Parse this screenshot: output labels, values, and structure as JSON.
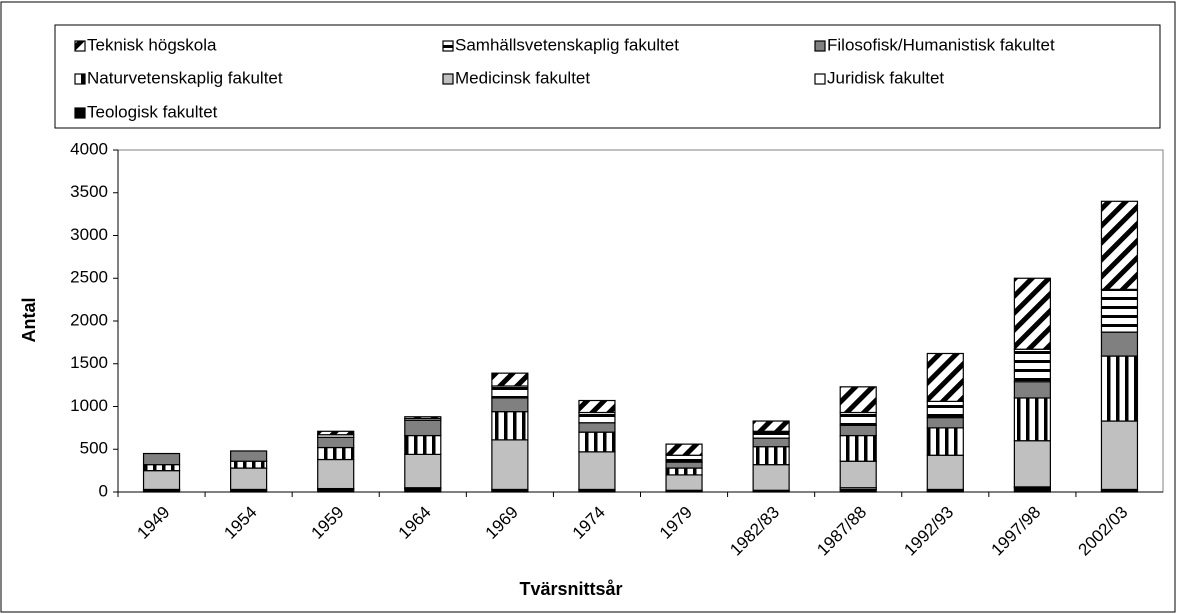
{
  "chart_data": {
    "type": "stacked_bar",
    "x_label": "Tvärsnittsår",
    "y_label": "Antal",
    "categories": [
      "1949",
      "1954",
      "1959",
      "1964",
      "1969",
      "1974",
      "1979",
      "1982/83",
      "1987/88",
      "1992/93",
      "1997/98",
      "2002/03"
    ],
    "ylim": [
      0,
      4000
    ],
    "yticks": [
      0,
      500,
      1000,
      1500,
      2000,
      2500,
      3000,
      3500,
      4000
    ],
    "series": [
      {
        "name": "Teologisk fakultet",
        "color": "#000000",
        "pattern": "solid",
        "values": [
          20,
          20,
          30,
          40,
          20,
          20,
          10,
          10,
          30,
          20,
          50,
          20
        ]
      },
      {
        "name": "Juridisk fakultet",
        "color": "#ffffff",
        "pattern": "solid",
        "values": [
          10,
          10,
          10,
          10,
          10,
          10,
          10,
          10,
          20,
          10,
          10,
          10
        ]
      },
      {
        "name": "Medicinsk fakultet",
        "color": "#c0c0c0",
        "pattern": "solid",
        "values": [
          220,
          250,
          340,
          390,
          580,
          440,
          180,
          300,
          310,
          400,
          540,
          800
        ]
      },
      {
        "name": "Naturvetenskaplig fakultet",
        "color": "#000000",
        "pattern": "vertical",
        "values": [
          70,
          80,
          140,
          220,
          330,
          230,
          80,
          210,
          300,
          320,
          500,
          760
        ]
      },
      {
        "name": "Filosofisk/Humanistisk fakultet",
        "color": "#808080",
        "pattern": "solid",
        "values": [
          130,
          120,
          120,
          180,
          160,
          110,
          70,
          100,
          120,
          120,
          190,
          280
        ]
      },
      {
        "name": "Samhällsvetenskaplig fakultet",
        "color": "#000000",
        "pattern": "horizontal",
        "values": [
          0,
          0,
          30,
          20,
          140,
          120,
          80,
          80,
          150,
          190,
          380,
          500
        ]
      },
      {
        "name": "Teknisk högskola",
        "color": "#000000",
        "pattern": "diagonal",
        "values": [
          0,
          0,
          40,
          20,
          150,
          140,
          130,
          120,
          300,
          560,
          830,
          1030
        ]
      }
    ],
    "legend_order": [
      6,
      5,
      4,
      3,
      2,
      1,
      0
    ]
  }
}
